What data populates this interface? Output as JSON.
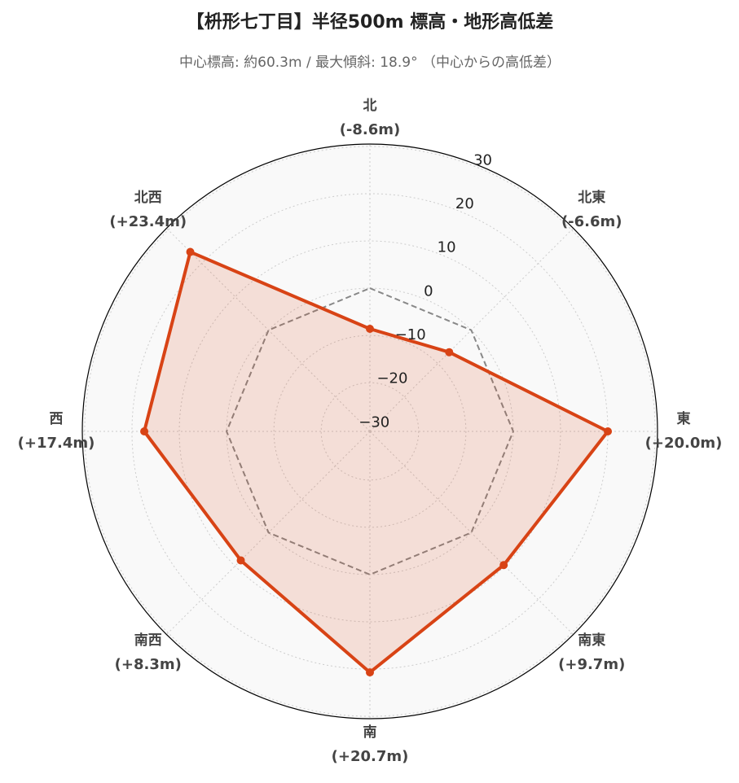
{
  "chart_data": {
    "type": "radar",
    "title": "【枡形七丁目】半径500m 標高・地形高低差",
    "subtitle": "中心標高: 約60.3m / 最大傾斜: 18.9° （中心からの高低差）",
    "categories": [
      "北",
      "北東",
      "東",
      "南東",
      "南",
      "南西",
      "西",
      "北西"
    ],
    "series": [
      {
        "color": "#d84315",
        "values": [
          -8.6,
          -6.6,
          20.0,
          9.7,
          20.7,
          8.3,
          17.4,
          23.4
        ],
        "value_labels": [
          "(-8.6m)",
          "(-6.6m)",
          "(+20.0m)",
          "(+9.7m)",
          "(+20.7m)",
          "(+8.3m)",
          "(+17.4m)",
          "(+23.4m)"
        ]
      },
      {
        "color": "#888888",
        "dashed": true,
        "values": [
          0,
          0,
          0,
          0,
          0,
          0,
          0,
          0
        ]
      }
    ],
    "ylim": [
      -30.3,
      30.5
    ],
    "yticks": [
      {
        "value": -30,
        "label": "−30"
      },
      {
        "value": -20,
        "label": "−20"
      },
      {
        "value": -10,
        "label": "−10"
      },
      0,
      10,
      20,
      30
    ],
    "grid": true
  }
}
